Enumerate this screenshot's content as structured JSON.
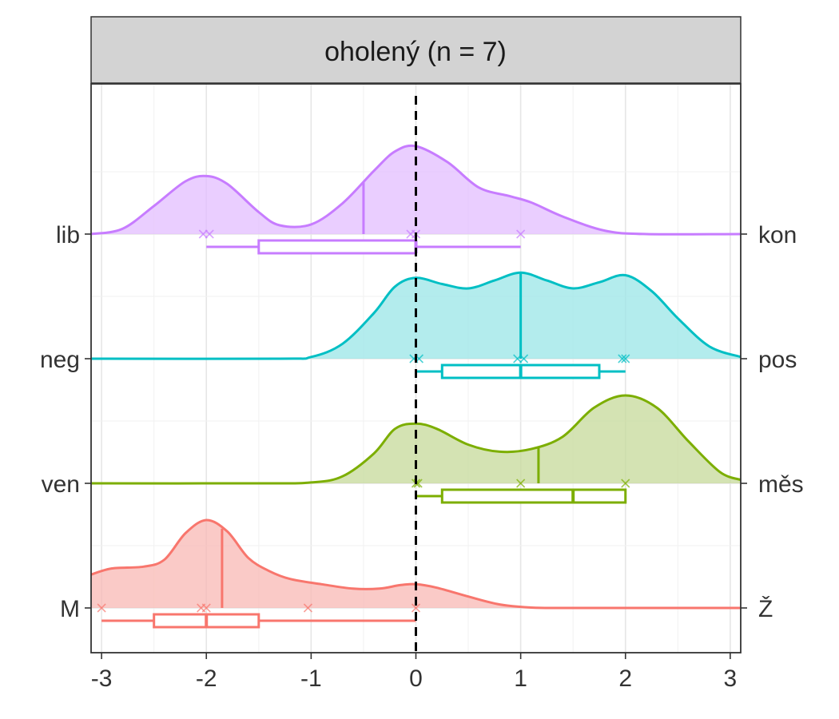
{
  "chart_data": {
    "type": "ridgeline-density-boxplot",
    "title": "oholený (n = 7)",
    "xlabel": "",
    "ylabel": "",
    "xlim": [
      -3.1,
      3.1
    ],
    "x_ticks": [
      "-3",
      "-2",
      "-1",
      "0",
      "1",
      "2",
      "3"
    ],
    "x_tick_values": [
      -3,
      -2,
      -1,
      0,
      1,
      2,
      3
    ],
    "reference_line": {
      "x": 0,
      "style": "dashed",
      "color": "#000000"
    },
    "grid": true,
    "series": [
      {
        "left_label": "M",
        "right_label": "Ž",
        "color": "#F8766D",
        "fill": "#F8B8B4",
        "points": [
          -3,
          -2.05,
          -2,
          -1.03,
          0
        ],
        "median": -1.85,
        "box": {
          "min": -3,
          "q1": -2.5,
          "median": -2,
          "q3": -1.5,
          "max": 0
        },
        "density": [
          [
            -3.1,
            0.38
          ],
          [
            -2.9,
            0.45
          ],
          [
            -2.6,
            0.47
          ],
          [
            -2.4,
            0.55
          ],
          [
            -2.2,
            0.85
          ],
          [
            -2.0,
            1.0
          ],
          [
            -1.8,
            0.87
          ],
          [
            -1.6,
            0.57
          ],
          [
            -1.4,
            0.42
          ],
          [
            -1.2,
            0.33
          ],
          [
            -0.9,
            0.27
          ],
          [
            -0.6,
            0.22
          ],
          [
            -0.35,
            0.22
          ],
          [
            -0.15,
            0.26
          ],
          [
            0.0,
            0.27
          ],
          [
            0.2,
            0.23
          ],
          [
            0.5,
            0.13
          ],
          [
            0.8,
            0.04
          ],
          [
            1.1,
            0.005
          ],
          [
            1.5,
            0.0
          ],
          [
            3.1,
            0.0
          ]
        ]
      },
      {
        "left_label": "ven",
        "right_label": "měs",
        "color": "#7CAE00",
        "fill": "#C5DA99",
        "points": [
          0,
          0.02,
          1,
          2
        ],
        "median": 1.17,
        "box": {
          "min": 0,
          "q1": 0.25,
          "median": 1.5,
          "q3": 2,
          "max": 2
        },
        "density": [
          [
            -3.1,
            0.0
          ],
          [
            -1.5,
            0.0
          ],
          [
            -1.0,
            0.01
          ],
          [
            -0.7,
            0.08
          ],
          [
            -0.4,
            0.34
          ],
          [
            -0.2,
            0.62
          ],
          [
            0.0,
            0.68
          ],
          [
            0.2,
            0.62
          ],
          [
            0.5,
            0.44
          ],
          [
            0.8,
            0.36
          ],
          [
            1.1,
            0.39
          ],
          [
            1.4,
            0.53
          ],
          [
            1.7,
            0.86
          ],
          [
            2.0,
            1.0
          ],
          [
            2.3,
            0.86
          ],
          [
            2.6,
            0.48
          ],
          [
            2.9,
            0.13
          ],
          [
            3.1,
            0.04
          ]
        ]
      },
      {
        "left_label": "neg",
        "right_label": "pos",
        "color": "#00BFC4",
        "fill": "#99E5E7",
        "points": [
          -0.02,
          0.03,
          0.97,
          1.03,
          1.97,
          2.0
        ],
        "median": 1.0,
        "box": {
          "min": 0,
          "q1": 0.25,
          "median": 1.0,
          "q3": 1.75,
          "max": 2
        },
        "density": [
          [
            -3.1,
            0.0
          ],
          [
            -1.3,
            0.0
          ],
          [
            -1.0,
            0.02
          ],
          [
            -0.7,
            0.17
          ],
          [
            -0.4,
            0.52
          ],
          [
            -0.2,
            0.82
          ],
          [
            0.0,
            0.92
          ],
          [
            0.25,
            0.85
          ],
          [
            0.5,
            0.8
          ],
          [
            0.75,
            0.89
          ],
          [
            1.0,
            0.98
          ],
          [
            1.25,
            0.89
          ],
          [
            1.5,
            0.8
          ],
          [
            1.75,
            0.87
          ],
          [
            2.0,
            0.95
          ],
          [
            2.25,
            0.77
          ],
          [
            2.5,
            0.46
          ],
          [
            2.8,
            0.14
          ],
          [
            3.1,
            0.02
          ]
        ]
      },
      {
        "left_label": "lib",
        "right_label": "kon",
        "color": "#C77CFF",
        "fill": "#E3BDFF",
        "points": [
          -2.03,
          -1.97,
          -0.05,
          0,
          1
        ],
        "median": -0.5,
        "box": {
          "min": -2,
          "q1": -1.5,
          "median": 0,
          "q3": 0,
          "max": 1
        },
        "density": [
          [
            -3.1,
            0.0
          ],
          [
            -2.8,
            0.06
          ],
          [
            -2.5,
            0.32
          ],
          [
            -2.2,
            0.6
          ],
          [
            -2.0,
            0.66
          ],
          [
            -1.8,
            0.57
          ],
          [
            -1.5,
            0.25
          ],
          [
            -1.3,
            0.1
          ],
          [
            -1.0,
            0.11
          ],
          [
            -0.7,
            0.35
          ],
          [
            -0.4,
            0.72
          ],
          [
            -0.2,
            0.94
          ],
          [
            0.0,
            1.0
          ],
          [
            0.3,
            0.82
          ],
          [
            0.6,
            0.53
          ],
          [
            0.9,
            0.43
          ],
          [
            1.1,
            0.36
          ],
          [
            1.4,
            0.2
          ],
          [
            1.8,
            0.04
          ],
          [
            2.2,
            0.0
          ],
          [
            3.1,
            0.0
          ]
        ]
      }
    ]
  }
}
